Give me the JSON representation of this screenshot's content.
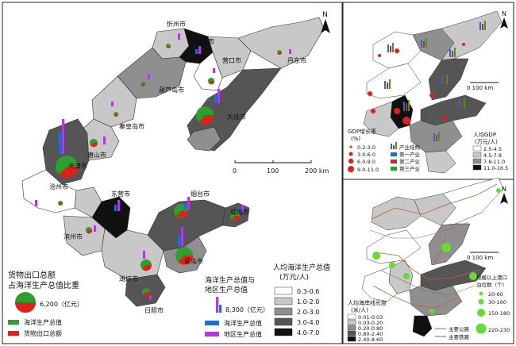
{
  "colors": {
    "c1": "#ffffff",
    "c2": "#c8c8c8",
    "c3": "#8f8f8f",
    "c4": "#555555",
    "c5": "#111111",
    "marine": "#2ca02c",
    "export": "#e0201b",
    "bar_marine": "#1f6fd1",
    "bar_regional": "#b43adf",
    "border": "#333333",
    "road": "#c0602a",
    "rail": "#8a6a4a",
    "port": "#66dd33"
  },
  "main_map": {
    "cities": {
      "xinzhou": "忻州市",
      "yingkou_n": "营口市",
      "panjin": "盘锦市",
      "dandong": "丹东市",
      "huludao": "葫芦岛市",
      "qinhuangdao": "秦皇岛市",
      "dalian": "大连市",
      "tangshan": "唐山市",
      "tianjin": "天津市",
      "cangzhou": "沧州市",
      "dongying": "东营市",
      "yantai": "烟台市",
      "weihai": "威海市",
      "binzhou": "滨州市",
      "qingdao": "青岛市",
      "weifang": "潍坊市",
      "rizhao": "日照市"
    },
    "scale": {
      "t0": "0",
      "t1": "100",
      "t2": "200 km"
    },
    "north": "N",
    "legend_export": {
      "title1": "货物出口总额",
      "title2": "占海洋生产总值比重",
      "sample_value": "6,200（亿元）",
      "item_marine": "海洋生产总值",
      "item_export": "货物出口总额"
    },
    "legend_bars": {
      "title1": "海洋生产总值与",
      "title2": "地区生产总值",
      "sample_value": "8,300（亿元）",
      "item_marine": "海洋生产总值",
      "item_regional": "地区生产总值"
    },
    "legend_class": {
      "title1": "人均海洋生产总值",
      "title2": "(万元/人)",
      "classes": [
        "0.3-0.6",
        "1.0-2.0",
        "2.0-3.0",
        "3.0-4.0",
        "4.0-7.0"
      ]
    }
  },
  "top_right_map": {
    "north": "N",
    "scale": "0       100 km",
    "legend_gdp": {
      "title1": "人均GDP",
      "title2": "(万元/人)",
      "classes": [
        "2.5-4.5",
        "4.5-7.8",
        "7.8-11.0",
        "11.0-16.5"
      ]
    },
    "legend_growth": {
      "title1": "GDP增长率",
      "title2": "(%)",
      "classes": [
        "0.2-3.0",
        "3.0-6.0",
        "6.0-9.0",
        "9.0-11.0"
      ]
    },
    "legend_structure": {
      "items": [
        "产业结构",
        "第一产业",
        "第二产业",
        "第三产业"
      ]
    }
  },
  "bottom_right_map": {
    "north": "N",
    "scale": "0       100 km",
    "legend_coast": {
      "title1": "人均海岸线长度",
      "title2": "(米/人)",
      "classes": [
        "0.01-0.03",
        "0.03-0.20",
        "0.20-0.80",
        "0.80-2.40",
        "2.40-8.60"
      ]
    },
    "legend_network": {
      "road": "主要公路",
      "rail": "主要铁路"
    },
    "legend_ports": {
      "title1": "规模以上港口",
      "title2": "泊位数（个）",
      "classes": [
        "20-60",
        "30-100",
        "150-180",
        "220-230"
      ]
    }
  }
}
